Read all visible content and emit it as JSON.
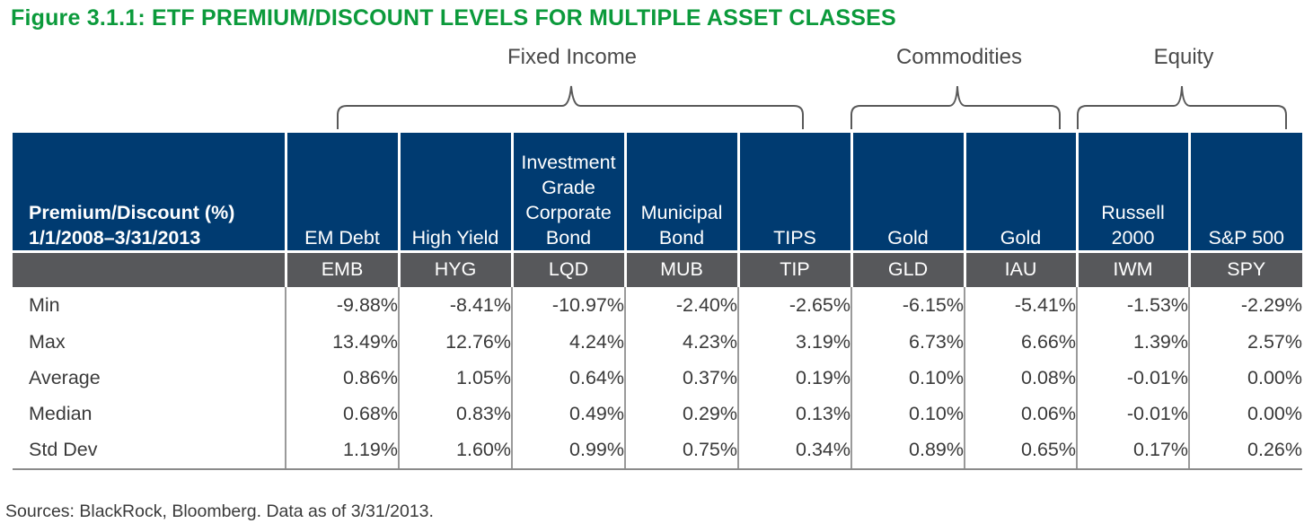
{
  "title": "Figure 3.1.1: ETF PREMIUM/DISCOUNT LEVELS FOR MULTIPLE ASSET CLASSES",
  "colors": {
    "title": "#0b9a3b",
    "header": "#003b71",
    "ticker_row": "#57585b"
  },
  "groups": [
    "Fixed Income",
    "Commodities",
    "Equity"
  ],
  "source": "Sources: BlackRock, Bloomberg. Data as of 3/31/2013.",
  "chart_data": {
    "type": "table",
    "row_header": [
      "Premium/Discount (%)",
      "1/1/2008–3/31/2013"
    ],
    "columns": [
      {
        "name_lines": [
          "EM Debt"
        ],
        "ticker": "EMB",
        "group": "Fixed Income"
      },
      {
        "name_lines": [
          "High Yield"
        ],
        "ticker": "HYG",
        "group": "Fixed Income"
      },
      {
        "name_lines": [
          "Investment",
          "Grade",
          "Corporate",
          "Bond"
        ],
        "ticker": "LQD",
        "group": "Fixed Income"
      },
      {
        "name_lines": [
          "Municipal",
          "Bond"
        ],
        "ticker": "MUB",
        "group": "Fixed Income"
      },
      {
        "name_lines": [
          "TIPS"
        ],
        "ticker": "TIP",
        "group": "Fixed Income"
      },
      {
        "name_lines": [
          "Gold"
        ],
        "ticker": "GLD",
        "group": "Commodities"
      },
      {
        "name_lines": [
          "Gold"
        ],
        "ticker": "IAU",
        "group": "Commodities"
      },
      {
        "name_lines": [
          "Russell",
          "2000"
        ],
        "ticker": "IWM",
        "group": "Equity"
      },
      {
        "name_lines": [
          "S&P 500"
        ],
        "ticker": "SPY",
        "group": "Equity"
      }
    ],
    "rows": [
      {
        "label": "Min",
        "values": [
          "-9.88%",
          "-8.41%",
          "-10.97%",
          "-2.40%",
          "-2.65%",
          "-6.15%",
          "-5.41%",
          "-1.53%",
          "-2.29%"
        ]
      },
      {
        "label": "Max",
        "values": [
          "13.49%",
          "12.76%",
          "4.24%",
          "4.23%",
          "3.19%",
          "6.73%",
          "6.66%",
          "1.39%",
          "2.57%"
        ]
      },
      {
        "label": "Average",
        "values": [
          "0.86%",
          "1.05%",
          "0.64%",
          "0.37%",
          "0.19%",
          "0.10%",
          "0.08%",
          "-0.01%",
          "0.00%"
        ]
      },
      {
        "label": "Median",
        "values": [
          "0.68%",
          "0.83%",
          "0.49%",
          "0.29%",
          "0.13%",
          "0.10%",
          "0.06%",
          "-0.01%",
          "0.00%"
        ]
      },
      {
        "label": "Std Dev",
        "values": [
          "1.19%",
          "1.60%",
          "0.99%",
          "0.75%",
          "0.34%",
          "0.89%",
          "0.65%",
          "0.17%",
          "0.26%"
        ]
      }
    ]
  }
}
